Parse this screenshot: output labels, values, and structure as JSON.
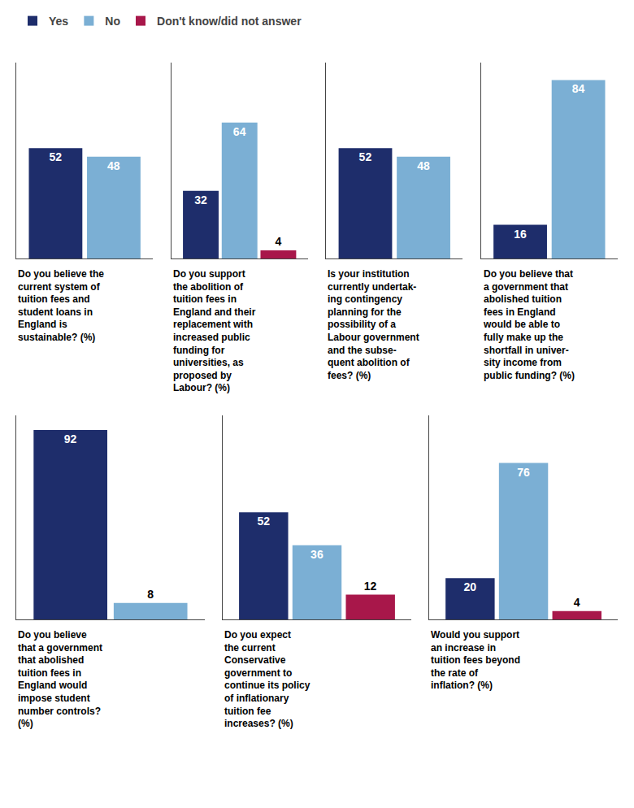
{
  "chart_data": [
    {
      "type": "bar",
      "xlabel": "Do you believe the\ncurrent system of\ntuition fees and\nstudent loans in\nEngland is\nsustainable? (%)",
      "series": [
        {
          "name": "Yes",
          "color": "#1e2d6b",
          "values": [
            52
          ]
        },
        {
          "name": "No",
          "color": "#7bafd4",
          "values": [
            48
          ]
        }
      ],
      "ylim": [
        0,
        92
      ],
      "yticks": [],
      "tick_labels": false,
      "grid": false,
      "data_labels": true,
      "legend": "upper left"
    },
    {
      "type": "bar",
      "xlabel": "Do you support\nthe abolition of\ntuition fees in\nEngland and their\nreplacement with\nincreased public\nfunding for\nuniversities, as\nproposed by\nLabour? (%)",
      "series": [
        {
          "name": "Yes",
          "color": "#1e2d6b",
          "values": [
            32
          ]
        },
        {
          "name": "No",
          "color": "#7bafd4",
          "values": [
            64
          ]
        },
        {
          "name": "Don't know/did not answer",
          "color": "#a8174a",
          "values": [
            4
          ]
        }
      ],
      "ylim": [
        0,
        92
      ],
      "yticks": [],
      "tick_labels": false,
      "grid": false,
      "data_labels": true,
      "legend": "upper left"
    },
    {
      "type": "bar",
      "xlabel": "Is your institution\ncurrently undertak-\ning contingency\nplanning for the\npossibility of a\nLabour government\nand the subse-\nquent abolition of\nfees? (%)",
      "series": [
        {
          "name": "Yes",
          "color": "#1e2d6b",
          "values": [
            52
          ]
        },
        {
          "name": "No",
          "color": "#7bafd4",
          "values": [
            48
          ]
        }
      ],
      "ylim": [
        0,
        92
      ],
      "yticks": [],
      "tick_labels": false,
      "grid": false,
      "data_labels": true,
      "legend": "upper left"
    },
    {
      "type": "bar",
      "xlabel": "Do you believe that\na government that\nabolished tuition\nfees in England\nwould be able to\nfully make up the\nshortfall in univer-\nsity income from\npublic funding? (%)",
      "series": [
        {
          "name": "Yes",
          "color": "#1e2d6b",
          "values": [
            16
          ]
        },
        {
          "name": "No",
          "color": "#7bafd4",
          "values": [
            84
          ]
        }
      ],
      "ylim": [
        0,
        92
      ],
      "yticks": [],
      "tick_labels": false,
      "grid": false,
      "data_labels": true,
      "legend": "upper left"
    },
    {
      "type": "bar",
      "xlabel": "Do you believe\nthat a government\nthat abolished\ntuition fees in\nEngland would\nimpose student\nnumber controls?\n(%)",
      "series": [
        {
          "name": "Yes",
          "color": "#1e2d6b",
          "values": [
            92
          ]
        },
        {
          "name": "No",
          "color": "#7bafd4",
          "values": [
            8
          ]
        }
      ],
      "ylim": [
        0,
        99
      ],
      "yticks": [],
      "tick_labels": false,
      "grid": false,
      "data_labels": true,
      "legend": "upper left"
    },
    {
      "type": "bar",
      "xlabel": "Do you expect\nthe current\nConservative\ngovernment to\ncontinue its policy\nof inflationary\ntuition fee\nincreases? (%)",
      "series": [
        {
          "name": "Yes",
          "color": "#1e2d6b",
          "values": [
            52
          ]
        },
        {
          "name": "No",
          "color": "#7bafd4",
          "values": [
            36
          ]
        },
        {
          "name": "Don't know/did not answer",
          "color": "#a8174a",
          "values": [
            12
          ]
        }
      ],
      "ylim": [
        0,
        99
      ],
      "yticks": [],
      "tick_labels": false,
      "grid": false,
      "data_labels": true,
      "legend": "upper left"
    },
    {
      "type": "bar",
      "xlabel": "Would you support\nan increase in\ntuition fees beyond\nthe rate of\ninflation? (%)",
      "series": [
        {
          "name": "Yes",
          "color": "#1e2d6b",
          "values": [
            20
          ]
        },
        {
          "name": "No",
          "color": "#7bafd4",
          "values": [
            76
          ]
        },
        {
          "name": "Don't know/did not answer",
          "color": "#a8174a",
          "values": [
            4
          ]
        }
      ],
      "ylim": [
        0,
        99
      ],
      "yticks": [],
      "tick_labels": false,
      "grid": false,
      "data_labels": true,
      "legend": "upper left"
    }
  ]
}
